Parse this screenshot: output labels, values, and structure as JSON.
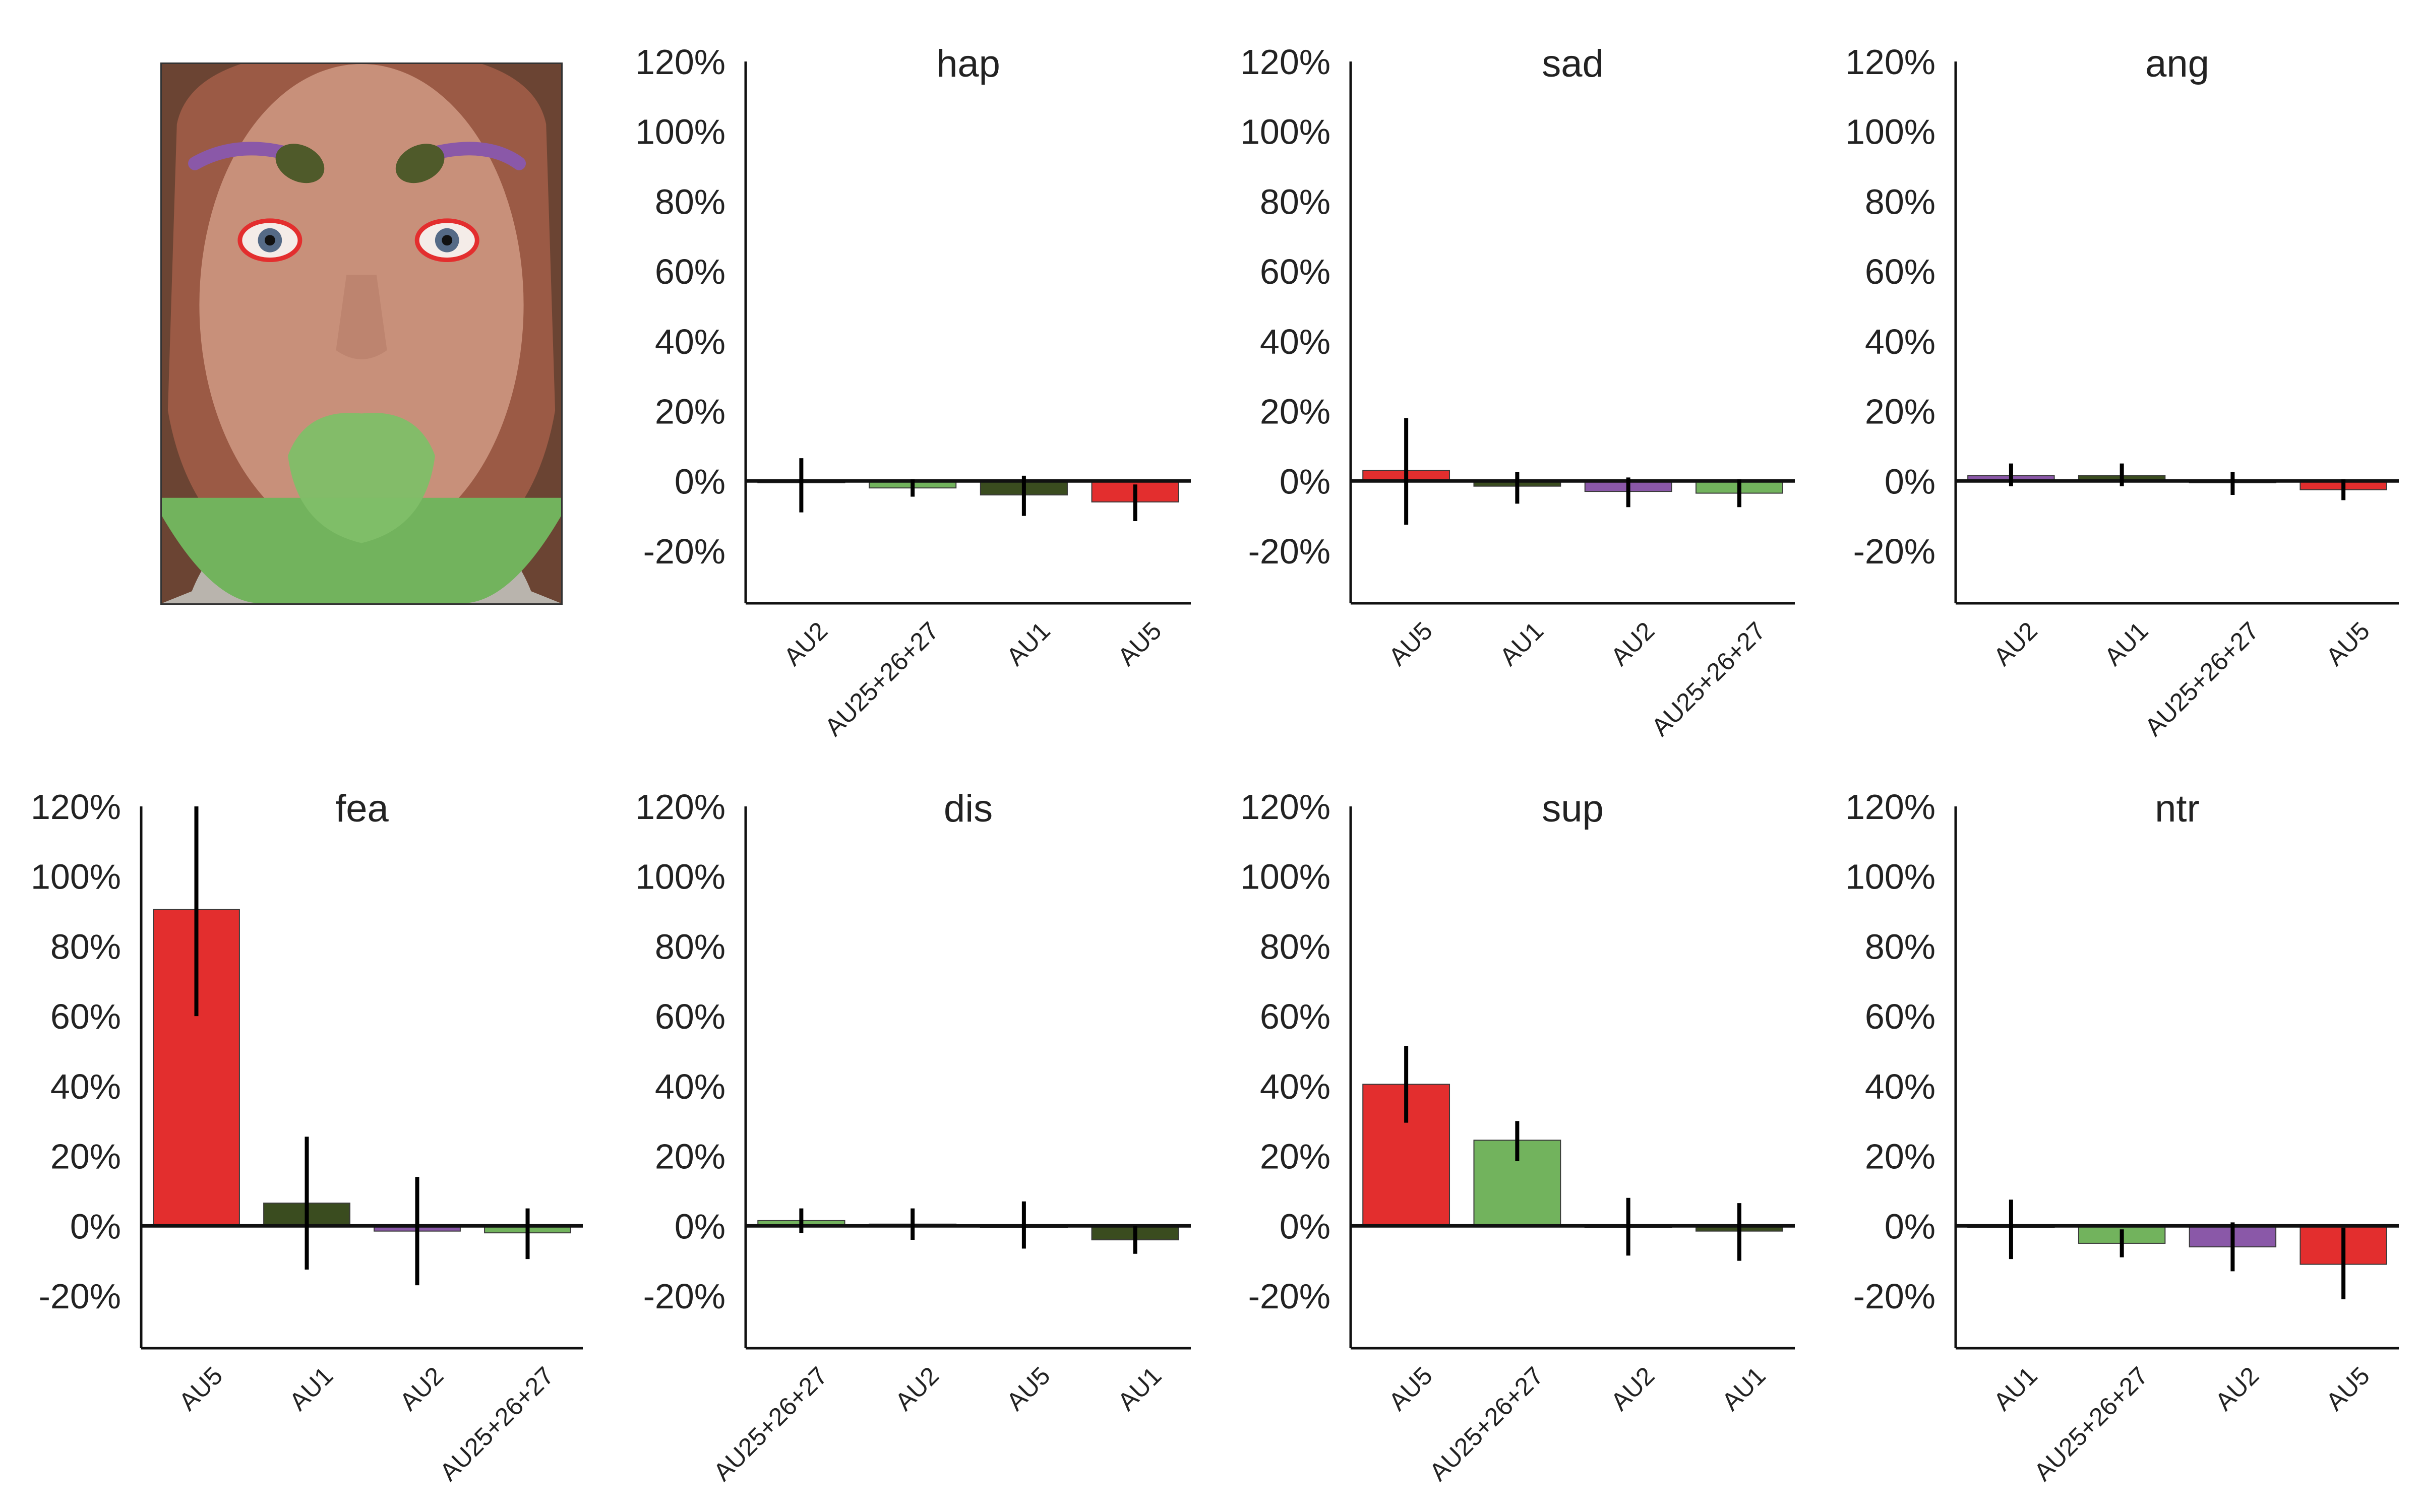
{
  "colors": {
    "AU5": "#e32e2e",
    "AU1": "#3a4c1f",
    "AU2": "#8a58a8",
    "AU25+26+27": "#72b35d"
  },
  "face_image": {
    "description_icon": "face-photo-with-action-unit-overlays"
  },
  "chart_data": [
    {
      "type": "bar",
      "title": "hap",
      "ylim": [
        -35,
        120
      ],
      "yticks": [
        -20,
        0,
        20,
        40,
        60,
        80,
        100,
        120
      ],
      "ytick_format": "percent",
      "categories": [
        "AU2",
        "AU25+26+27",
        "AU1",
        "AU5"
      ],
      "values": [
        -0.5,
        -2,
        -4,
        -6
      ],
      "err_low": [
        -9,
        -4.5,
        -10,
        -11.5
      ],
      "err_high": [
        6.5,
        0.5,
        1.5,
        -1
      ]
    },
    {
      "type": "bar",
      "title": "sad",
      "ylim": [
        -35,
        120
      ],
      "yticks": [
        -20,
        0,
        20,
        40,
        60,
        80,
        100,
        120
      ],
      "ytick_format": "percent",
      "categories": [
        "AU5",
        "AU1",
        "AU2",
        "AU25+26+27"
      ],
      "values": [
        3,
        -1.5,
        -3,
        -3.5
      ],
      "err_low": [
        -12.5,
        -6.5,
        -7.5,
        -7.5
      ],
      "err_high": [
        18,
        2.5,
        1,
        0.5
      ]
    },
    {
      "type": "bar",
      "title": "ang",
      "ylim": [
        -35,
        120
      ],
      "yticks": [
        -20,
        0,
        20,
        40,
        60,
        80,
        100,
        120
      ],
      "ytick_format": "percent",
      "categories": [
        "AU2",
        "AU1",
        "AU25+26+27",
        "AU5"
      ],
      "values": [
        1.5,
        1.5,
        -0.5,
        -2.5
      ],
      "err_low": [
        -1.5,
        -1.5,
        -4,
        -5.5
      ],
      "err_high": [
        5,
        5,
        2.5,
        0.5
      ]
    },
    {
      "type": "bar",
      "title": "fea",
      "ylim": [
        -35,
        120
      ],
      "yticks": [
        -20,
        0,
        20,
        40,
        60,
        80,
        100,
        120
      ],
      "ytick_format": "percent",
      "categories": [
        "AU5",
        "AU1",
        "AU2",
        "AU25+26+27"
      ],
      "values": [
        90.5,
        6.5,
        -1.5,
        -2
      ],
      "err_low": [
        60,
        -12.5,
        -17,
        -9.5
      ],
      "err_high": [
        120,
        25.5,
        14,
        5
      ]
    },
    {
      "type": "bar",
      "title": "dis",
      "ylim": [
        -35,
        120
      ],
      "yticks": [
        -20,
        0,
        20,
        40,
        60,
        80,
        100,
        120
      ],
      "ytick_format": "percent",
      "categories": [
        "AU25+26+27",
        "AU2",
        "AU5",
        "AU1"
      ],
      "values": [
        1.5,
        0.5,
        -0.5,
        -4
      ],
      "err_low": [
        -2,
        -4,
        -6.5,
        -8
      ],
      "err_high": [
        5,
        5,
        7,
        0
      ]
    },
    {
      "type": "bar",
      "title": "sup",
      "ylim": [
        -35,
        120
      ],
      "yticks": [
        -20,
        0,
        20,
        40,
        60,
        80,
        100,
        120
      ],
      "ytick_format": "percent",
      "categories": [
        "AU5",
        "AU25+26+27",
        "AU2",
        "AU1"
      ],
      "values": [
        40.5,
        24.5,
        -0.5,
        -1.5
      ],
      "err_low": [
        29.5,
        18.5,
        -8.5,
        -10
      ],
      "err_high": [
        51.5,
        30,
        8,
        6.5
      ]
    },
    {
      "type": "bar",
      "title": "ntr",
      "ylim": [
        -35,
        120
      ],
      "yticks": [
        -20,
        0,
        20,
        40,
        60,
        80,
        100,
        120
      ],
      "ytick_format": "percent",
      "categories": [
        "AU1",
        "AU25+26+27",
        "AU2",
        "AU5"
      ],
      "values": [
        -0.5,
        -5,
        -6,
        -11
      ],
      "err_low": [
        -9.5,
        -9,
        -13,
        -21
      ],
      "err_high": [
        7.5,
        -1,
        1,
        -0.5
      ]
    }
  ]
}
